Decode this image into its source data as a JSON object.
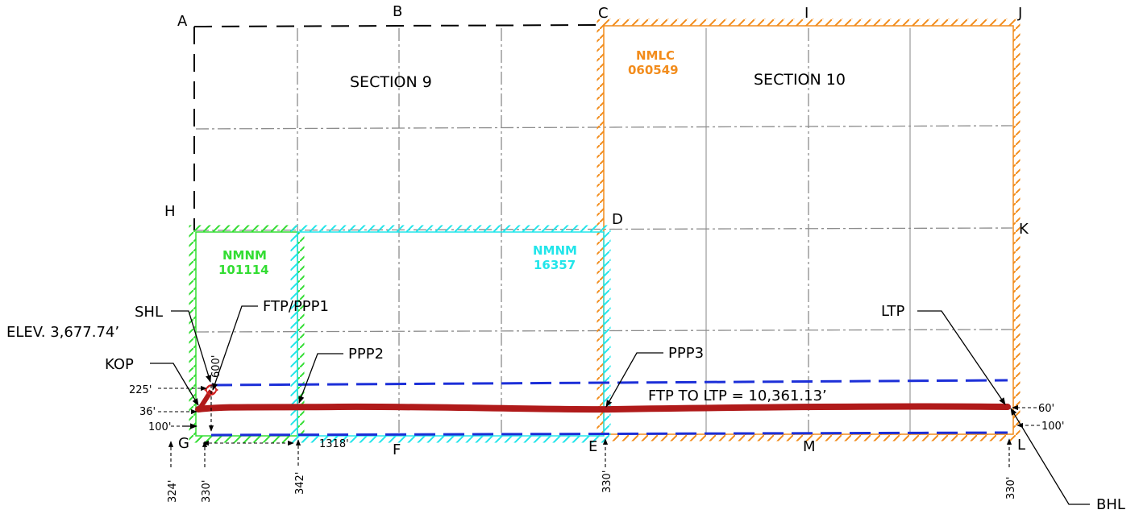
{
  "corners": {
    "A": "A",
    "B": "B",
    "C": "C",
    "I": "I",
    "J": "J",
    "H": "H",
    "D": "D",
    "K": "K",
    "G": "G",
    "F": "F",
    "E": "E",
    "M": "M",
    "L": "L"
  },
  "sections": {
    "s9": "SECTION 9",
    "s10": "SECTION 10"
  },
  "leases": {
    "nmlc": {
      "line1": "NMLC",
      "line2": "060549",
      "color": "#f28c1c"
    },
    "nmnm_green": {
      "line1": "NMNM",
      "line2": "101114",
      "color": "#33dd33"
    },
    "nmnm_cyan": {
      "line1": "NMNM",
      "line2": "16357",
      "color": "#22e5ea"
    }
  },
  "callouts": {
    "shl": "SHL",
    "elev": "ELEV. 3,677.74’",
    "ftp_ppp1": "FTP/PPP1",
    "kop": "KOP",
    "ppp2": "PPP2",
    "ppp3": "PPP3",
    "ltp": "LTP",
    "bhl": "BHL",
    "ftp_to_ltp": "FTP TO LTP = 10,361.13’"
  },
  "dimensions": {
    "d225": "225'",
    "d36": "36'",
    "d100_left": "100'",
    "d600": "600'",
    "d1318": "1318'",
    "d324": "324'",
    "d330_left": "330'",
    "d342": "342'",
    "d330_mid": "330'",
    "d330_right": "330'",
    "d60": "60'",
    "d100_right": "100'"
  },
  "colors": {
    "wellbore": "#b01a1a",
    "setback_line": "#1c2fd8",
    "grid": "#8c8c8c"
  }
}
